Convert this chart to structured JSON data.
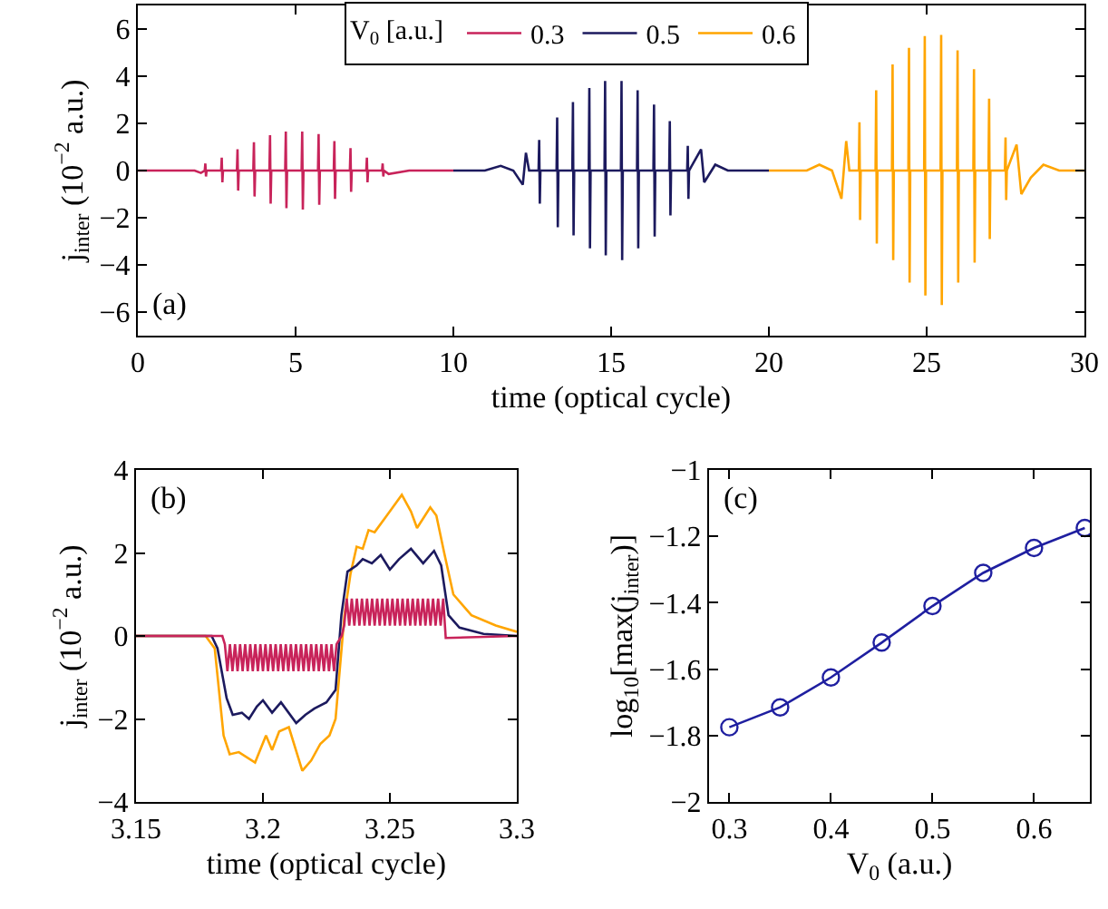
{
  "chart_data": [
    {
      "type": "line",
      "xlabel": "time (optical cycle)",
      "ylabel": "j$_{inter}$ (10$^{−2}$ a.u.)",
      "legend_title": "V$_{0}$ [a.u.]",
      "legend": "top",
      "marker": "none",
      "annotations": [
        "(a)"
      ],
      "xlim": [
        0,
        30
      ],
      "xticks": [
        0,
        5,
        10,
        15,
        20,
        25,
        30
      ],
      "ylim": [
        -7,
        7
      ],
      "yticks": [
        -6,
        -4,
        -2,
        0,
        2,
        4,
        6
      ],
      "series": [
        {
          "name": "0.3",
          "color": "#c8235a",
          "x": [
            0,
            1.8,
            2.0,
            2.12,
            2.14,
            2.16,
            2.18,
            2.64,
            2.66,
            2.68,
            2.7,
            3.14,
            3.16,
            3.18,
            3.2,
            3.66,
            3.68,
            3.7,
            3.72,
            4.17,
            4.19,
            4.21,
            4.23,
            4.67,
            4.69,
            4.71,
            4.73,
            5.19,
            5.21,
            5.23,
            5.25,
            5.71,
            5.73,
            5.75,
            5.77,
            6.21,
            6.23,
            6.25,
            6.27,
            6.72,
            6.74,
            6.76,
            6.78,
            7.24,
            7.26,
            7.28,
            7.3,
            7.74,
            7.76,
            7.78,
            7.8,
            7.95,
            8.6,
            10
          ],
          "values": [
            0,
            0,
            -0.1,
            0,
            0.3,
            -0.25,
            0,
            0,
            0.55,
            -0.5,
            0,
            0,
            0.9,
            -0.85,
            0,
            0,
            1.2,
            -1.1,
            0,
            0,
            1.5,
            -1.4,
            0,
            0,
            1.65,
            -1.6,
            0,
            0,
            1.65,
            -1.65,
            0,
            0,
            1.55,
            -1.45,
            0,
            0,
            1.25,
            -1.2,
            0,
            0,
            0.95,
            -0.9,
            0,
            0,
            0.55,
            -0.5,
            0,
            0,
            0.3,
            -0.25,
            0,
            -0.15,
            0,
            0
          ]
        },
        {
          "name": "0.5",
          "color": "#1c1a5e",
          "x": [
            10,
            11.0,
            11.5,
            11.9,
            12.2,
            12.3,
            12.4,
            12.7,
            12.72,
            12.74,
            12.76,
            13.27,
            13.29,
            13.31,
            13.33,
            13.77,
            13.79,
            13.81,
            13.83,
            14.29,
            14.31,
            14.33,
            14.35,
            14.79,
            14.81,
            14.83,
            14.85,
            15.31,
            15.33,
            15.35,
            15.37,
            15.82,
            15.84,
            15.86,
            15.88,
            16.34,
            16.36,
            16.38,
            16.4,
            16.84,
            16.86,
            16.88,
            16.9,
            17.41,
            17.43,
            17.45,
            17.47,
            17.85,
            17.95,
            18.3,
            18.7,
            20
          ],
          "values": [
            0,
            0,
            0.2,
            0,
            -0.6,
            0.75,
            0,
            0,
            1.3,
            -1.4,
            0,
            0,
            2.25,
            -2.4,
            0,
            0,
            2.9,
            -2.75,
            0,
            0,
            3.5,
            -3.3,
            0,
            0,
            3.8,
            -3.6,
            0,
            0,
            3.8,
            -3.8,
            0,
            0,
            3.4,
            -3.3,
            0,
            0,
            2.8,
            -2.8,
            0,
            0,
            2.1,
            -1.9,
            0,
            0,
            1.05,
            -1.2,
            0,
            0.9,
            -0.5,
            0.25,
            0,
            0
          ]
        },
        {
          "name": "0.6",
          "color": "#ffa500",
          "x": [
            20,
            21.2,
            21.6,
            22.0,
            22.3,
            22.45,
            22.55,
            22.85,
            22.87,
            22.89,
            22.91,
            23.38,
            23.4,
            23.42,
            23.44,
            23.9,
            23.92,
            23.94,
            23.96,
            24.42,
            24.44,
            24.46,
            24.48,
            24.92,
            24.94,
            24.96,
            24.98,
            25.44,
            25.46,
            25.48,
            25.5,
            25.96,
            25.98,
            26.0,
            26.02,
            26.48,
            26.5,
            26.52,
            26.54,
            26.96,
            26.98,
            27.0,
            27.02,
            27.48,
            27.5,
            27.52,
            27.54,
            27.85,
            28.0,
            28.3,
            28.7,
            29.2,
            30
          ],
          "values": [
            0,
            0,
            0.25,
            0,
            -1.2,
            1.25,
            0,
            0,
            2.05,
            -2.1,
            0,
            0,
            3.4,
            -3.1,
            0,
            0,
            4.5,
            -3.8,
            0,
            0,
            5.2,
            -4.75,
            0,
            0,
            5.7,
            -5.3,
            0,
            0,
            5.75,
            -5.7,
            0,
            0,
            5.1,
            -4.75,
            0,
            0,
            4.3,
            -3.9,
            0,
            0,
            3.05,
            -2.9,
            0,
            0,
            1.4,
            -1.25,
            0,
            1.1,
            -1.0,
            -0.3,
            0.25,
            0,
            0
          ]
        }
      ]
    },
    {
      "type": "line",
      "xlabel": "time (optical cycle)",
      "ylabel": "j$_{inter}$ (10$^{−2}$ a.u.)",
      "marker": "none",
      "annotations": [
        "(b)"
      ],
      "xlim": [
        3.15,
        3.3
      ],
      "xticks": [
        3.15,
        3.2,
        3.25,
        3.3
      ],
      "ylim": [
        -4,
        4
      ],
      "yticks": [
        -4,
        -2,
        0,
        2,
        4
      ],
      "series": [
        {
          "color": "#ffa500",
          "x": [
            3.15,
            3.1774,
            3.181,
            3.1845,
            3.1869,
            3.1905,
            3.1969,
            3.2012,
            3.2036,
            3.2064,
            3.2102,
            3.2155,
            3.219,
            3.2226,
            3.2262,
            3.2286,
            3.2321,
            3.2345,
            3.2369,
            3.2393,
            3.2416,
            3.244,
            3.2488,
            3.2547,
            3.2583,
            3.2607,
            3.2659,
            3.2683,
            3.2714,
            3.275,
            3.2821,
            3.2917,
            3.3
          ],
          "values": [
            0,
            0,
            -0.3,
            -2.4,
            -2.85,
            -2.8,
            -3.05,
            -2.4,
            -2.75,
            -2.3,
            -2.2,
            -3.25,
            -3.0,
            -2.6,
            -2.4,
            -2.0,
            0.5,
            1.5,
            2.15,
            2.1,
            2.55,
            2.5,
            2.9,
            3.4,
            3.0,
            2.6,
            3.1,
            2.9,
            2.0,
            1.0,
            0.5,
            0.25,
            0.1
          ]
        },
        {
          "color": "#1c1a5e",
          "x": [
            3.15,
            3.1798,
            3.1821,
            3.1857,
            3.1881,
            3.1917,
            3.1945,
            3.1976,
            3.2,
            3.2036,
            3.2071,
            3.2131,
            3.2167,
            3.2202,
            3.225,
            3.2286,
            3.2309,
            3.2333,
            3.2369,
            3.2393,
            3.2429,
            3.2464,
            3.25,
            3.2536,
            3.2583,
            3.2631,
            3.2674,
            3.2702,
            3.2731,
            3.2774,
            3.2869,
            3.3
          ],
          "values": [
            0,
            0,
            -0.3,
            -1.5,
            -1.9,
            -1.85,
            -2.0,
            -1.7,
            -1.55,
            -1.85,
            -1.6,
            -2.1,
            -1.9,
            -1.75,
            -1.6,
            -1.3,
            0.5,
            1.55,
            1.7,
            1.85,
            1.75,
            1.95,
            1.6,
            1.85,
            2.1,
            1.75,
            2.05,
            1.7,
            0.5,
            0.2,
            0.05,
            0
          ]
        },
        {
          "color": "#c8235a",
          "x": [
            3.15,
            3.184,
            3.185,
            3.186,
            3.187,
            3.188,
            3.189,
            3.19,
            3.191,
            3.192,
            3.193,
            3.194,
            3.195,
            3.196,
            3.197,
            3.198,
            3.199,
            3.2,
            3.201,
            3.202,
            3.203,
            3.204,
            3.205,
            3.206,
            3.207,
            3.208,
            3.209,
            3.21,
            3.211,
            3.212,
            3.213,
            3.214,
            3.215,
            3.216,
            3.217,
            3.218,
            3.219,
            3.22,
            3.221,
            3.222,
            3.223,
            3.224,
            3.225,
            3.226,
            3.227,
            3.228,
            3.229,
            3.231,
            3.232,
            3.233,
            3.234,
            3.235,
            3.236,
            3.237,
            3.238,
            3.239,
            3.24,
            3.241,
            3.242,
            3.243,
            3.244,
            3.245,
            3.246,
            3.247,
            3.248,
            3.249,
            3.25,
            3.251,
            3.252,
            3.253,
            3.254,
            3.255,
            3.256,
            3.257,
            3.258,
            3.259,
            3.26,
            3.261,
            3.262,
            3.263,
            3.264,
            3.265,
            3.266,
            3.267,
            3.268,
            3.269,
            3.27,
            3.271,
            3.272,
            3.3
          ],
          "values": [
            0,
            0,
            -0.2,
            -0.85,
            -0.2,
            -0.85,
            -0.2,
            -0.85,
            -0.2,
            -0.85,
            -0.2,
            -0.85,
            -0.2,
            -0.85,
            -0.2,
            -0.85,
            -0.2,
            -0.85,
            -0.2,
            -0.85,
            -0.2,
            -0.85,
            -0.2,
            -0.85,
            -0.2,
            -0.85,
            -0.2,
            -0.85,
            -0.2,
            -0.85,
            -0.2,
            -0.85,
            -0.2,
            -0.85,
            -0.2,
            -0.85,
            -0.2,
            -0.85,
            -0.2,
            -0.85,
            -0.2,
            -0.85,
            -0.2,
            -0.85,
            -0.2,
            -0.85,
            -0.2,
            0,
            0.25,
            0.9,
            0.25,
            0.9,
            0.25,
            0.9,
            0.25,
            0.9,
            0.25,
            0.9,
            0.25,
            0.9,
            0.25,
            0.9,
            0.25,
            0.9,
            0.25,
            0.9,
            0.25,
            0.9,
            0.25,
            0.9,
            0.25,
            0.9,
            0.25,
            0.9,
            0.25,
            0.9,
            0.25,
            0.9,
            0.25,
            0.9,
            0.25,
            0.9,
            0.25,
            0.9,
            0.25,
            0.9,
            0.25,
            0.9,
            -0.05,
            0
          ]
        }
      ]
    },
    {
      "type": "line",
      "xlabel": "V$_{0}$ (a.u.)",
      "ylabel": "log$_{10}$[max(j$_{inter}$)]",
      "marker": "circle",
      "annotations": [
        "(c)"
      ],
      "xlim": [
        0.28,
        0.655
      ],
      "xticks": [
        0.3,
        0.4,
        0.5,
        0.6
      ],
      "ylim": [
        -2,
        -1
      ],
      "yticks": [
        -2,
        -1.8,
        -1.6,
        -1.4,
        -1.2,
        -1
      ],
      "series": [
        {
          "color": "#1f1fa0",
          "x": [
            0.3,
            0.35,
            0.4,
            0.45,
            0.5,
            0.55,
            0.6,
            0.65
          ],
          "values": [
            -1.775,
            -1.715,
            -1.625,
            -1.52,
            -1.41,
            -1.31,
            -1.235,
            -1.175
          ]
        }
      ]
    }
  ]
}
